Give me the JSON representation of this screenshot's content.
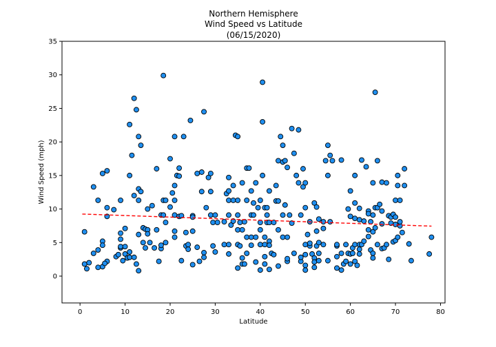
{
  "chart_data": {
    "type": "scatter",
    "title_lines": [
      "Northern Hemisphere",
      "Wind Speed vs Latitude",
      "(06/15/2020)"
    ],
    "xlabel": "Latitude",
    "ylabel": "Wind Speed (mph)",
    "xlim": [
      -4,
      81
    ],
    "ylim": [
      -4,
      35
    ],
    "xticks": [
      0,
      10,
      20,
      30,
      40,
      50,
      60,
      70,
      80
    ],
    "yticks": [
      0,
      5,
      10,
      15,
      20,
      25,
      30,
      35
    ],
    "grid": false,
    "legend": "none",
    "marker_color": "#1f8ff0",
    "marker_edge": "#000000",
    "regression": {
      "x0": 0.5,
      "y0": 9.25,
      "x1": 78,
      "y1": 7.45,
      "color": "#ff0000",
      "style": "dashed"
    },
    "points": [
      [
        1,
        6.6
      ],
      [
        1,
        1.8
      ],
      [
        1.5,
        1.1
      ],
      [
        2,
        2
      ],
      [
        3,
        13.3
      ],
      [
        3,
        3.4
      ],
      [
        4,
        11.3
      ],
      [
        4,
        3.9
      ],
      [
        4,
        1.3
      ],
      [
        5,
        15.3
      ],
      [
        5,
        1.4
      ],
      [
        5,
        5.2
      ],
      [
        5,
        4.6
      ],
      [
        6,
        10.2
      ],
      [
        6,
        8.9
      ],
      [
        6,
        15.7
      ],
      [
        6,
        2.2
      ],
      [
        5.5,
        1.9
      ],
      [
        7.5,
        9.9
      ],
      [
        8,
        2.9
      ],
      [
        8.5,
        3.2
      ],
      [
        9,
        11.3
      ],
      [
        9,
        6.4
      ],
      [
        9,
        5.5
      ],
      [
        9,
        4.2
      ],
      [
        9,
        4.4
      ],
      [
        9.5,
        2.3
      ],
      [
        10,
        7.1
      ],
      [
        10,
        4.4
      ],
      [
        10,
        3.3
      ],
      [
        10.5,
        2.7
      ],
      [
        11,
        22.6
      ],
      [
        11,
        15
      ],
      [
        11,
        3.6
      ],
      [
        11,
        2.8
      ],
      [
        11.5,
        18
      ],
      [
        12,
        26.5
      ],
      [
        12,
        12
      ],
      [
        12,
        2.8
      ],
      [
        12.5,
        1.8
      ],
      [
        12.5,
        24.8
      ],
      [
        13,
        20.8
      ],
      [
        13,
        13
      ],
      [
        13,
        11.3
      ],
      [
        13,
        0.8
      ],
      [
        13,
        6.2
      ],
      [
        13.5,
        19.5
      ],
      [
        13.5,
        12.6
      ],
      [
        14,
        7.2
      ],
      [
        14,
        5
      ],
      [
        14.5,
        7
      ],
      [
        14.5,
        4.2
      ],
      [
        15,
        10
      ],
      [
        15,
        6.9
      ],
      [
        15,
        6.3
      ],
      [
        15.5,
        5
      ],
      [
        16,
        10.5
      ],
      [
        16.5,
        4.2
      ],
      [
        17,
        16
      ],
      [
        17,
        6.9
      ],
      [
        17.5,
        2.2
      ],
      [
        18,
        9.1
      ],
      [
        18,
        4.1
      ],
      [
        18,
        4.6
      ],
      [
        18.5,
        29.9
      ],
      [
        18.5,
        9.1
      ],
      [
        18.5,
        11.3
      ],
      [
        19,
        11.3
      ],
      [
        19,
        8
      ],
      [
        19,
        5
      ],
      [
        20,
        10.3
      ],
      [
        20,
        17.5
      ],
      [
        20.5,
        12.4
      ],
      [
        21,
        20.8
      ],
      [
        21,
        13.5
      ],
      [
        21,
        11.3
      ],
      [
        21,
        6.7
      ],
      [
        21,
        5.8
      ],
      [
        21,
        9.1
      ],
      [
        21.5,
        15
      ],
      [
        22,
        16.1
      ],
      [
        22,
        8.9
      ],
      [
        22,
        14.9
      ],
      [
        22.5,
        9
      ],
      [
        22.5,
        2.3
      ],
      [
        23,
        20.8
      ],
      [
        23.5,
        6.5
      ],
      [
        23.5,
        4.5
      ],
      [
        24,
        4
      ],
      [
        24,
        4.7
      ],
      [
        24.5,
        23.2
      ],
      [
        25,
        9
      ],
      [
        25,
        8.8
      ],
      [
        25,
        6.7
      ],
      [
        25,
        1.7
      ],
      [
        26,
        15.3
      ],
      [
        26,
        4.3
      ],
      [
        26.5,
        2.2
      ],
      [
        27,
        12.6
      ],
      [
        27,
        15.5
      ],
      [
        27.5,
        24.5
      ],
      [
        27.5,
        3.5
      ],
      [
        27.5,
        2.8
      ],
      [
        28,
        10.2
      ],
      [
        28.5,
        14.7
      ],
      [
        29,
        12.6
      ],
      [
        29,
        9.1
      ],
      [
        29,
        15.3
      ],
      [
        29.5,
        4.5
      ],
      [
        29.5,
        8
      ],
      [
        30,
        9.1
      ],
      [
        30,
        3.6
      ],
      [
        30.5,
        8
      ],
      [
        32,
        8.1
      ],
      [
        32,
        4.7
      ],
      [
        32.5,
        12.3
      ],
      [
        33,
        9.1
      ],
      [
        33,
        12.7
      ],
      [
        33,
        14.7
      ],
      [
        33,
        11.3
      ],
      [
        33,
        4.7
      ],
      [
        33,
        3.3
      ],
      [
        33.5,
        7.6
      ],
      [
        34,
        8.2
      ],
      [
        34,
        11.3
      ],
      [
        34,
        13.5
      ],
      [
        34.5,
        21
      ],
      [
        35,
        20.8
      ],
      [
        35,
        11.3
      ],
      [
        35,
        9.1
      ],
      [
        35,
        6.9
      ],
      [
        35,
        4.7
      ],
      [
        35,
        1.2
      ],
      [
        35.5,
        8
      ],
      [
        35.5,
        4.5
      ],
      [
        36,
        13.9
      ],
      [
        36,
        6.9
      ],
      [
        36,
        2.7
      ],
      [
        36,
        1.8
      ],
      [
        36.5,
        1.8
      ],
      [
        36.5,
        8.1
      ],
      [
        37,
        11.3
      ],
      [
        37,
        5.8
      ],
      [
        37,
        3.4
      ],
      [
        37,
        16.1
      ],
      [
        37.5,
        16.1
      ],
      [
        38,
        12.7
      ],
      [
        38,
        5.8
      ],
      [
        38,
        9.1
      ],
      [
        38,
        4.6
      ],
      [
        38.5,
        9.1
      ],
      [
        38.5,
        10.9
      ],
      [
        39,
        2.1
      ],
      [
        39,
        5.8
      ],
      [
        39,
        13.9
      ],
      [
        39.5,
        10.2
      ],
      [
        40,
        11.3
      ],
      [
        40,
        8
      ],
      [
        40,
        6.9
      ],
      [
        40,
        4.7
      ],
      [
        40,
        0.9
      ],
      [
        40.5,
        15
      ],
      [
        40.5,
        23
      ],
      [
        40.5,
        28.9
      ],
      [
        41,
        10.2
      ],
      [
        41,
        5.8
      ],
      [
        41,
        2.9
      ],
      [
        41,
        4.7
      ],
      [
        41,
        1.8
      ],
      [
        41.5,
        8
      ],
      [
        41.5,
        9.1
      ],
      [
        41.5,
        10.2
      ],
      [
        42,
        8
      ],
      [
        42,
        12.7
      ],
      [
        42,
        5.2
      ],
      [
        42,
        4.6
      ],
      [
        42,
        1
      ],
      [
        42.5,
        3.4
      ],
      [
        43,
        3.2
      ],
      [
        43,
        8
      ],
      [
        43.5,
        13.5
      ],
      [
        43.5,
        11.2
      ],
      [
        44,
        17.2
      ],
      [
        44,
        11.2
      ],
      [
        44,
        6.9
      ],
      [
        44,
        1.5
      ],
      [
        44.5,
        20.8
      ],
      [
        45,
        17
      ],
      [
        45,
        5.8
      ],
      [
        45,
        9.1
      ],
      [
        45,
        19.5
      ],
      [
        45.5,
        17.2
      ],
      [
        45.5,
        10.6
      ],
      [
        46,
        16.2
      ],
      [
        46,
        5.8
      ],
      [
        46,
        2.2
      ],
      [
        46,
        2.6
      ],
      [
        46.5,
        9.1
      ],
      [
        47,
        22
      ],
      [
        47,
        7.9
      ],
      [
        47.5,
        3.4
      ],
      [
        47.5,
        18.3
      ],
      [
        48,
        15
      ],
      [
        48.5,
        13.9
      ],
      [
        48.5,
        21.8
      ],
      [
        49,
        9.1
      ],
      [
        49,
        2.2
      ],
      [
        49,
        2.8
      ],
      [
        49.5,
        16
      ],
      [
        49.5,
        13.3
      ],
      [
        50,
        13.9
      ],
      [
        50,
        10.2
      ],
      [
        50,
        4.7
      ],
      [
        50,
        3.2
      ],
      [
        50,
        1.6
      ],
      [
        50,
        0.9
      ],
      [
        50.5,
        6.2
      ],
      [
        51,
        4.5
      ],
      [
        51,
        8.1
      ],
      [
        51,
        4.9
      ],
      [
        51.5,
        3.3
      ],
      [
        52,
        2.7
      ],
      [
        52,
        2.1
      ],
      [
        52,
        1.3
      ],
      [
        52,
        10.9
      ],
      [
        52.5,
        10.3
      ],
      [
        52.5,
        6.7
      ],
      [
        52.5,
        4.5
      ],
      [
        53,
        8.5
      ],
      [
        53,
        5
      ],
      [
        53,
        3.4
      ],
      [
        53,
        2.3
      ],
      [
        54,
        8.1
      ],
      [
        54,
        7.1
      ],
      [
        54,
        4.7
      ],
      [
        54.5,
        17.2
      ],
      [
        55,
        19.5
      ],
      [
        55,
        15
      ],
      [
        55,
        2.3
      ],
      [
        55.5,
        18
      ],
      [
        55.5,
        8.1
      ],
      [
        56,
        17.2
      ],
      [
        57,
        4.5
      ],
      [
        57,
        4.7
      ],
      [
        57,
        1.2
      ],
      [
        57,
        2.9
      ],
      [
        58,
        17.3
      ],
      [
        58,
        3.4
      ],
      [
        58,
        0.9
      ],
      [
        58.5,
        1.8
      ],
      [
        59,
        4.7
      ],
      [
        59,
        2.2
      ],
      [
        59.5,
        10
      ],
      [
        59.5,
        3.4
      ],
      [
        60,
        12.7
      ],
      [
        60,
        8.9
      ],
      [
        60,
        1.8
      ],
      [
        60,
        3.3
      ],
      [
        60.5,
        3.4
      ],
      [
        60.5,
        4.2
      ],
      [
        61,
        10.9
      ],
      [
        61,
        15
      ],
      [
        61,
        8.6
      ],
      [
        61,
        4.7
      ],
      [
        61,
        2.2
      ],
      [
        61.5,
        1.6
      ],
      [
        62,
        10.1
      ],
      [
        62,
        8.4
      ],
      [
        62,
        4.7
      ],
      [
        62,
        4
      ],
      [
        62,
        3.3
      ],
      [
        62.5,
        17.3
      ],
      [
        62.5,
        4.7
      ],
      [
        63,
        5.2
      ],
      [
        63,
        8.2
      ],
      [
        63.5,
        16.3
      ],
      [
        64,
        9.7
      ],
      [
        64,
        9.3
      ],
      [
        64,
        6.9
      ],
      [
        64,
        5.9
      ],
      [
        64.5,
        8.1
      ],
      [
        64.5,
        3.9
      ],
      [
        65,
        13.9
      ],
      [
        65,
        9.1
      ],
      [
        65,
        6.6
      ],
      [
        65,
        3.4
      ],
      [
        65,
        2.7
      ],
      [
        65.5,
        27.4
      ],
      [
        65.5,
        10.2
      ],
      [
        65.5,
        7.2
      ],
      [
        66,
        10.2
      ],
      [
        66,
        17.2
      ],
      [
        66,
        4.7
      ],
      [
        66.5,
        10.7
      ],
      [
        67,
        14
      ],
      [
        67,
        9.7
      ],
      [
        67,
        7.8
      ],
      [
        67,
        4.1
      ],
      [
        67.5,
        4.2
      ],
      [
        68,
        13.9
      ],
      [
        68,
        4.7
      ],
      [
        68.5,
        9
      ],
      [
        68.5,
        2.5
      ],
      [
        69,
        7.9
      ],
      [
        69,
        8.8
      ],
      [
        69.5,
        5.1
      ],
      [
        69.5,
        9.2
      ],
      [
        70,
        5.3
      ],
      [
        70,
        11.3
      ],
      [
        70,
        7.7
      ],
      [
        70,
        8.8
      ],
      [
        70.5,
        15
      ],
      [
        70.5,
        13.5
      ],
      [
        70.5,
        5.8
      ],
      [
        71,
        7.5
      ],
      [
        71,
        8.1
      ],
      [
        71,
        11.3
      ],
      [
        71.5,
        6.5
      ],
      [
        72,
        16
      ],
      [
        72,
        13.5
      ],
      [
        73,
        4.8
      ],
      [
        73.5,
        2.3
      ],
      [
        77.5,
        3.3
      ],
      [
        78,
        5.8
      ]
    ]
  }
}
